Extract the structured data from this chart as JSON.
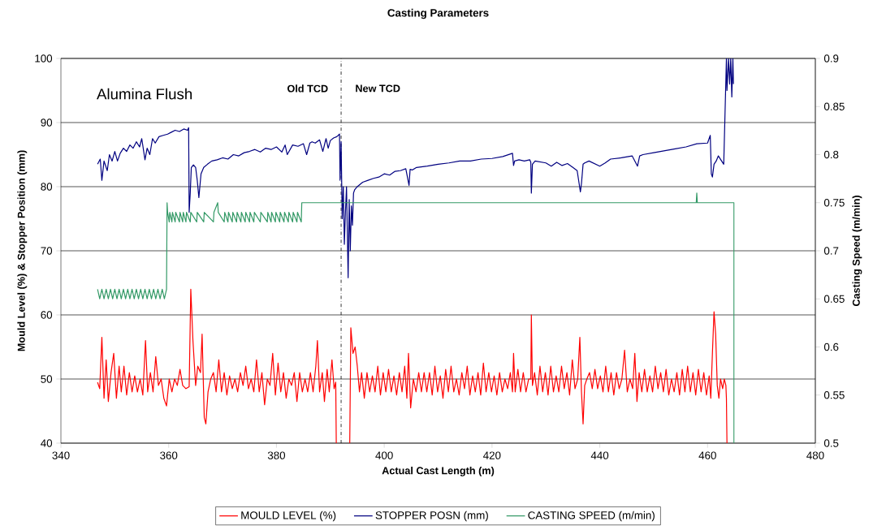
{
  "chart_data": {
    "type": "line",
    "title": "Casting Parameters",
    "xlabel": "Actual Cast Length (m)",
    "ylabel": "Mould Level (%) & Stopper Position (mm)",
    "y2label": "Casting Speed (m/min)",
    "xlim": [
      340,
      480
    ],
    "xticks": [
      340,
      360,
      380,
      400,
      420,
      440,
      460,
      480
    ],
    "ylim": [
      40,
      100
    ],
    "yticks": [
      40,
      50,
      60,
      70,
      80,
      90,
      100
    ],
    "y2lim": [
      0.5,
      0.9
    ],
    "y2ticks": [
      0.5,
      0.55,
      0.6,
      0.65,
      0.7,
      0.75,
      0.8,
      0.85,
      0.9
    ],
    "grid": "y",
    "legend": "bottom",
    "ref_lines": [
      {
        "axis": "x",
        "value": 392,
        "color": "#000000",
        "line_style": "dashdot"
      }
    ],
    "annotations": [
      "Alumina Flush",
      "Old TCD",
      "New TCD"
    ],
    "series": [
      {
        "name": "MOULD LEVEL (%)",
        "color": "#ff0000",
        "x": [
          346.8,
          347.2,
          347.6,
          348.0,
          348.4,
          348.8,
          349.3,
          349.8,
          350.3,
          350.8,
          351.2,
          351.7,
          352.2,
          352.7,
          353.2,
          353.7,
          354.2,
          354.7,
          355.2,
          355.7,
          356.1,
          356.6,
          357.1,
          357.6,
          358.1,
          358.6,
          359.1,
          359.6,
          360.1,
          360.6,
          361.1,
          361.6,
          362.1,
          362.6,
          363.2,
          363.8,
          364.1,
          364.5,
          365.0,
          365.4,
          365.9,
          366.2,
          366.6,
          366.9,
          367.3,
          367.8,
          368.3,
          368.8,
          369.3,
          369.8,
          370.3,
          370.8,
          371.3,
          371.8,
          372.3,
          372.8,
          373.3,
          373.8,
          374.3,
          374.8,
          375.3,
          375.8,
          376.3,
          376.8,
          377.3,
          377.8,
          378.3,
          378.8,
          379.3,
          379.8,
          380.3,
          380.8,
          381.3,
          381.8,
          382.3,
          382.8,
          383.3,
          383.8,
          384.3,
          384.8,
          385.3,
          385.8,
          386.3,
          386.8,
          387.3,
          387.6,
          388.0,
          388.5,
          388.9,
          389.4,
          389.8,
          390.3,
          390.7,
          391.0,
          391.1,
          391.5,
          393.6,
          393.8,
          394.2,
          394.6,
          395.0,
          395.4,
          395.8,
          396.3,
          396.8,
          397.3,
          397.8,
          398.3,
          398.8,
          399.3,
          399.8,
          400.3,
          400.8,
          401.3,
          401.8,
          402.3,
          402.8,
          403.3,
          403.8,
          404.2,
          404.5,
          404.9,
          405.4,
          405.9,
          406.4,
          406.9,
          407.4,
          407.9,
          408.4,
          408.9,
          409.4,
          409.9,
          410.4,
          410.9,
          411.4,
          411.9,
          412.4,
          412.9,
          413.4,
          413.9,
          414.4,
          414.9,
          415.4,
          415.9,
          416.4,
          416.9,
          417.4,
          417.9,
          418.4,
          418.9,
          419.4,
          419.9,
          420.4,
          420.9,
          421.4,
          421.9,
          422.4,
          422.9,
          423.4,
          423.8,
          424.0,
          424.3,
          424.8,
          425.3,
          425.8,
          426.3,
          426.8,
          427.2,
          427.3,
          427.5,
          427.9,
          428.4,
          428.9,
          429.4,
          429.9,
          430.4,
          430.9,
          431.4,
          431.9,
          432.4,
          432.9,
          433.4,
          433.9,
          434.4,
          434.9,
          435.4,
          435.9,
          436.3,
          436.6,
          436.9,
          437.2,
          437.6,
          438.1,
          438.6,
          439.1,
          439.6,
          440.1,
          440.6,
          441.1,
          441.6,
          442.1,
          442.6,
          443.1,
          443.6,
          444.1,
          444.6,
          445.1,
          445.6,
          446.1,
          446.5,
          446.9,
          447.3,
          447.8,
          448.3,
          448.8,
          449.3,
          449.8,
          450.3,
          450.8,
          451.3,
          451.8,
          452.3,
          452.8,
          453.3,
          453.8,
          454.3,
          454.8,
          455.3,
          455.8,
          456.3,
          456.8,
          457.3,
          457.8,
          458.3,
          458.8,
          459.3,
          459.8,
          460.3,
          460.6,
          460.9,
          461.2,
          461.5,
          461.8,
          462.1,
          462.4,
          462.8,
          463.1,
          463.4,
          463.5,
          463.6
        ],
        "values": [
          49.5,
          48.5,
          56.5,
          47,
          53,
          46.5,
          51,
          54,
          47,
          52,
          48,
          52,
          47.5,
          51,
          48,
          50.5,
          48,
          50,
          47.5,
          56,
          48,
          51,
          48,
          53.5,
          49,
          50,
          47,
          45.8,
          50,
          48,
          50,
          49,
          51.5,
          49,
          48.5,
          48.8,
          64,
          56,
          49,
          52,
          51,
          57,
          44,
          43,
          48,
          50,
          51,
          48,
          53,
          48,
          51,
          47.5,
          50.5,
          48.5,
          50,
          48,
          51,
          49,
          52,
          48.5,
          50,
          48,
          53,
          48,
          51,
          46,
          50,
          49,
          54,
          47.5,
          52.5,
          48,
          51,
          47,
          50,
          49,
          51,
          46.5,
          51,
          48,
          50,
          48,
          51,
          48,
          52,
          56,
          48,
          51,
          46.5,
          51.5,
          48,
          53,
          48.5,
          49.5,
          40,
          null,
          40,
          58,
          54,
          55,
          52,
          48,
          51,
          47,
          51,
          48,
          50.5,
          48,
          52,
          47.5,
          51,
          48,
          51.5,
          48,
          50.5,
          47.5,
          51,
          48,
          52,
          47,
          54,
          45.5,
          50,
          48,
          51,
          48,
          51,
          48,
          51,
          47.5,
          52,
          48,
          50.5,
          47,
          51.5,
          48,
          52,
          48,
          50,
          47.5,
          51,
          48.5,
          52,
          47.5,
          50.5,
          48,
          51,
          47.5,
          52.5,
          48,
          51,
          48,
          50.5,
          47.5,
          51,
          48,
          50,
          48.5,
          51,
          48,
          54,
          48,
          51.5,
          48,
          51,
          48,
          50,
          50,
          60,
          49,
          51,
          47.5,
          52,
          48,
          51,
          47.5,
          52,
          48,
          50.5,
          48,
          52,
          48.5,
          51,
          47.5,
          53,
          48.5,
          50,
          56.5,
          48,
          43,
          49,
          50,
          51,
          48.5,
          51.5,
          48.5,
          50.5,
          48,
          52,
          48,
          51,
          47.5,
          51,
          48.5,
          50,
          54.5,
          48,
          50,
          48.5,
          54,
          46.5,
          51,
          48,
          51.5,
          48,
          50.5,
          48,
          52,
          48.5,
          51,
          48,
          51.5,
          47.5,
          50,
          48,
          51,
          47.5,
          51.5,
          48,
          52,
          48,
          51,
          47.5,
          51.5,
          48,
          51,
          47.5,
          50.5,
          47,
          54,
          60.5,
          57,
          49,
          47,
          50,
          48.5,
          50,
          49,
          47,
          40
        ]
      },
      {
        "name": "STOPPER POSN (mm)",
        "color": "#000080",
        "x": [
          346.8,
          347.3,
          347.6,
          348.0,
          348.6,
          349.0,
          349.5,
          350.0,
          350.5,
          351.0,
          351.6,
          352.2,
          352.8,
          353.4,
          354.0,
          354.6,
          355.0,
          355.6,
          356.0,
          356.5,
          357.0,
          357.5,
          358.2,
          359.0,
          359.8,
          360.5,
          361.2,
          362.0,
          362.8,
          363.5,
          363.7,
          363.8,
          364.0,
          364.2,
          364.6,
          365.0,
          365.3,
          365.6,
          366.0,
          366.5,
          367.2,
          368.0,
          369.0,
          370.0,
          371.0,
          372.0,
          373.0,
          374.0,
          375.0,
          376.0,
          377.0,
          378.0,
          379.0,
          380.0,
          381.0,
          381.6,
          382.0,
          383.0,
          384.0,
          385.0,
          385.6,
          386.2,
          386.6,
          387.2,
          388.0,
          388.6,
          389.2,
          389.6,
          390.0,
          390.6,
          391.2,
          391.7,
          391.8,
          392.0,
          392.2,
          392.4,
          392.6,
          392.8,
          393.0,
          393.3,
          393.5,
          393.7,
          393.9,
          394.1,
          394.3,
          394.5,
          395.0,
          396.0,
          397.0,
          398.0,
          399.0,
          400.0,
          401.0,
          402.0,
          403.0,
          404.0,
          404.6,
          404.8,
          405.2,
          406.0,
          408.0,
          410.0,
          412.0,
          414.0,
          416.0,
          418.0,
          420.0,
          422.0,
          423.8,
          424.0,
          424.2,
          425.0,
          426.0,
          427.0,
          427.2,
          427.3,
          427.5,
          428.0,
          430.0,
          431.0,
          432.0,
          433.0,
          434.0,
          435.0,
          435.8,
          436.4,
          436.6,
          436.9,
          437.2,
          438.0,
          440.0,
          441.0,
          442.0,
          444.0,
          446.0,
          447.0,
          447.4,
          448.0,
          450.0,
          452.0,
          454.0,
          456.0,
          458.0,
          460.0,
          460.5,
          460.7,
          460.9,
          461.2,
          461.6,
          462.0,
          463.0,
          463.5,
          463.6,
          463.9,
          464.1,
          464.3,
          464.5,
          464.7,
          464.8
        ],
        "values": [
          83.5,
          84.3,
          81,
          84,
          82.5,
          85,
          84,
          85.5,
          84,
          85.2,
          86,
          85.5,
          86.5,
          86,
          87,
          86.2,
          87.5,
          84.2,
          86,
          85,
          87.5,
          86.8,
          87.8,
          88,
          88.2,
          88.5,
          88.8,
          88.6,
          89,
          88.8,
          89.2,
          76,
          79,
          83,
          83.4,
          83,
          81,
          78.3,
          82,
          83,
          83.5,
          84,
          84.2,
          84.5,
          84.3,
          85,
          84.8,
          85.3,
          85.5,
          85.8,
          85.4,
          86,
          85.8,
          86.2,
          85.4,
          86.5,
          85,
          86.5,
          86.3,
          86.7,
          85,
          86.8,
          87,
          86.8,
          87.3,
          85.5,
          87.5,
          86,
          87.2,
          87.6,
          87.8,
          88.2,
          81,
          87,
          75,
          80,
          71,
          76,
          80,
          65.8,
          78,
          70,
          77,
          74,
          79,
          79.5,
          80,
          80.7,
          81,
          81.3,
          81.5,
          82,
          81.8,
          82.4,
          82.5,
          82.8,
          80.2,
          82.7,
          82.6,
          83,
          83.2,
          83.5,
          83.7,
          84,
          84,
          84.3,
          84.4,
          84.7,
          85.2,
          83.3,
          84,
          84.2,
          84,
          84.2,
          83.8,
          79,
          83.5,
          84,
          83.7,
          83.2,
          83.8,
          83.3,
          83.6,
          83,
          82.5,
          79.2,
          80.5,
          83.5,
          83.7,
          84,
          83.2,
          83.7,
          84.3,
          84.5,
          84.8,
          83.2,
          84.8,
          85,
          85.3,
          85.6,
          85.9,
          86.2,
          86.7,
          86.8,
          88,
          82,
          81.5,
          83.5,
          84,
          84.8,
          83.5,
          100,
          95,
          100,
          96,
          100,
          94,
          100,
          96
        ]
      },
      {
        "name": "CASTING SPEED (m/min)",
        "color": "#339966",
        "axis": "y2",
        "x": [
          346.8,
          347.2,
          347.6,
          348.0,
          348.4,
          348.8,
          349.2,
          349.6,
          350.0,
          350.4,
          350.8,
          351.2,
          351.6,
          352.0,
          352.4,
          352.8,
          353.2,
          353.6,
          354.0,
          354.4,
          354.8,
          355.2,
          355.6,
          356.0,
          356.4,
          356.8,
          357.2,
          357.6,
          358.0,
          358.4,
          358.8,
          359.2,
          359.6,
          359.7,
          359.8,
          360.1,
          360.2,
          360.6,
          360.7,
          361.2,
          361.3,
          362.0,
          362.1,
          362.6,
          362.7,
          363.2,
          363.3,
          364.0,
          364.1,
          365.2,
          365.3,
          366.5,
          366.6,
          368.3,
          368.4,
          369.1,
          369.2,
          370.3,
          370.4,
          371.0,
          371.1,
          371.8,
          371.9,
          372.6,
          372.7,
          373.4,
          373.5,
          374.2,
          374.3,
          375.0,
          375.1,
          375.8,
          375.9,
          377.0,
          377.1,
          378.3,
          378.4,
          379.0,
          379.1,
          379.8,
          379.9,
          380.6,
          380.7,
          381.4,
          381.5,
          382.2,
          382.3,
          383.0,
          383.1,
          383.8,
          383.9,
          384.6,
          384.7,
          457.9,
          458.0,
          458.1,
          464.9,
          464.9
        ],
        "values": [
          0.66,
          0.65,
          0.66,
          0.65,
          0.66,
          0.65,
          0.66,
          0.65,
          0.66,
          0.65,
          0.66,
          0.65,
          0.66,
          0.65,
          0.66,
          0.65,
          0.66,
          0.65,
          0.66,
          0.65,
          0.66,
          0.65,
          0.66,
          0.65,
          0.66,
          0.65,
          0.66,
          0.65,
          0.66,
          0.65,
          0.66,
          0.65,
          0.66,
          0.75,
          0.74,
          0.73,
          0.74,
          0.73,
          0.74,
          0.73,
          0.74,
          0.73,
          0.74,
          0.73,
          0.74,
          0.73,
          0.74,
          0.73,
          0.74,
          0.73,
          0.74,
          0.73,
          0.74,
          0.73,
          0.74,
          0.75,
          0.74,
          0.73,
          0.74,
          0.73,
          0.74,
          0.73,
          0.74,
          0.73,
          0.74,
          0.73,
          0.74,
          0.73,
          0.74,
          0.73,
          0.74,
          0.73,
          0.74,
          0.73,
          0.74,
          0.73,
          0.74,
          0.73,
          0.74,
          0.73,
          0.74,
          0.73,
          0.74,
          0.73,
          0.74,
          0.73,
          0.74,
          0.73,
          0.74,
          0.73,
          0.74,
          0.73,
          0.75,
          0.75,
          0.76,
          0.75,
          0.75,
          0.5
        ]
      }
    ]
  }
}
